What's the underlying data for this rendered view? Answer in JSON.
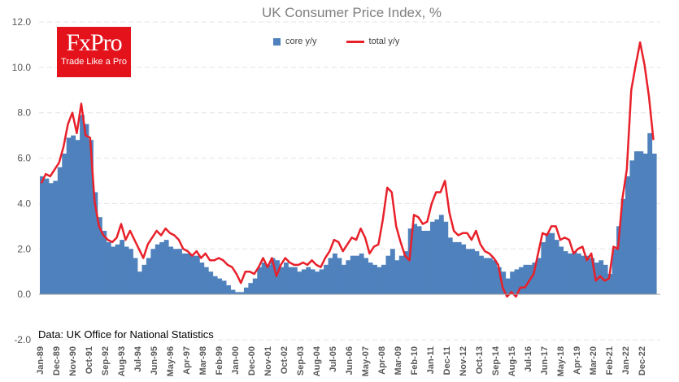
{
  "chart_data": {
    "type": "bar+line",
    "title": "UK Consumer Price Index, %",
    "source_note": "Data: UK Office for National Statistics",
    "ylim": [
      -2,
      12
    ],
    "yticks": [
      "12.0",
      "10.0",
      "8.0",
      "6.0",
      "4.0",
      "2.0",
      "0.0",
      "-2.0"
    ],
    "ytick_values": [
      12,
      10,
      8,
      6,
      4,
      2,
      0,
      -2
    ],
    "grid": "horizontal dashed",
    "legend_position": "top-center",
    "xticks": [
      "Jan-89",
      "Dec-89",
      "Nov-90",
      "Oct-91",
      "Sep-92",
      "Aug-93",
      "Jul-94",
      "Jun-95",
      "May-96",
      "Apr-97",
      "Mar-98",
      "Feb-99",
      "Jan-00",
      "Dec-00",
      "Nov-01",
      "Oct-02",
      "Sep-03",
      "Aug-04",
      "Jul-05",
      "Jun-06",
      "May-07",
      "Apr-08",
      "Mar-09",
      "Feb-10",
      "Jan-11",
      "Dec-11",
      "Nov-12",
      "Oct-13",
      "Sep-14",
      "Aug-15",
      "Jul-16",
      "Jun-17",
      "May-18",
      "Apr-19",
      "Mar-20",
      "Feb-21",
      "Jan-22",
      "Dec-22"
    ],
    "x_start": "1989-01",
    "x_step_months": 3,
    "series": [
      {
        "name": "core y/y",
        "type": "bar",
        "color": "#4f81bd",
        "values": [
          5.2,
          5.1,
          4.9,
          5.0,
          5.6,
          6.2,
          6.9,
          7.0,
          6.8,
          7.9,
          7.5,
          6.8,
          4.5,
          3.4,
          2.8,
          2.3,
          2.1,
          2.2,
          2.4,
          2.1,
          2.0,
          1.6,
          1.0,
          1.3,
          1.6,
          2.0,
          2.2,
          2.3,
          2.4,
          2.1,
          2.0,
          2.0,
          1.8,
          1.8,
          1.7,
          1.7,
          1.4,
          1.2,
          1.0,
          0.8,
          0.7,
          0.6,
          0.4,
          0.2,
          0.1,
          0.1,
          0.3,
          0.5,
          0.7,
          1.2,
          1.4,
          1.3,
          1.6,
          1.5,
          1.2,
          1.4,
          1.2,
          1.2,
          1.0,
          1.1,
          1.2,
          1.1,
          1.0,
          1.1,
          1.3,
          1.6,
          1.8,
          1.6,
          1.3,
          1.5,
          1.7,
          1.7,
          1.8,
          1.6,
          1.4,
          1.3,
          1.2,
          1.3,
          1.7,
          2.0,
          1.5,
          1.7,
          1.9,
          2.9,
          3.1,
          3.0,
          2.8,
          2.8,
          3.2,
          3.3,
          3.5,
          3.2,
          2.5,
          2.3,
          2.3,
          2.2,
          2.0,
          2.0,
          1.9,
          1.7,
          1.6,
          1.6,
          1.5,
          1.2,
          1.0,
          0.7,
          1.0,
          1.1,
          1.2,
          1.3,
          1.3,
          1.4,
          1.6,
          2.3,
          2.7,
          2.7,
          2.4,
          2.1,
          1.9,
          1.8,
          1.9,
          1.8,
          1.7,
          1.7,
          1.6,
          1.4,
          1.5,
          1.3,
          0.9,
          2.0,
          3.0,
          4.2,
          5.2,
          5.9,
          6.3,
          6.3,
          6.2,
          7.1,
          6.2
        ]
      },
      {
        "name": "total y/y",
        "type": "line",
        "color": "#e8202a",
        "values": [
          4.9,
          5.3,
          5.2,
          5.5,
          5.8,
          6.5,
          7.5,
          8.0,
          7.1,
          8.4,
          7.0,
          6.9,
          4.1,
          3.0,
          2.6,
          2.4,
          2.3,
          2.5,
          3.1,
          2.4,
          2.8,
          2.4,
          2.0,
          1.6,
          2.2,
          2.5,
          2.8,
          2.6,
          2.9,
          2.7,
          2.6,
          2.4,
          2.0,
          1.9,
          1.7,
          1.9,
          1.6,
          1.8,
          1.5,
          1.5,
          1.6,
          1.5,
          1.3,
          1.2,
          0.9,
          0.5,
          1.0,
          1.0,
          0.9,
          1.2,
          1.6,
          1.2,
          1.6,
          0.8,
          1.3,
          1.6,
          1.4,
          1.3,
          1.3,
          1.4,
          1.3,
          1.5,
          1.3,
          1.2,
          1.6,
          1.9,
          2.4,
          2.3,
          1.9,
          2.2,
          2.5,
          2.4,
          2.9,
          2.5,
          1.8,
          2.1,
          2.2,
          3.3,
          4.7,
          4.5,
          3.0,
          2.3,
          1.7,
          1.5,
          3.5,
          3.4,
          3.1,
          3.2,
          4.0,
          4.5,
          4.5,
          5.0,
          3.6,
          2.8,
          2.6,
          2.7,
          2.7,
          2.4,
          2.8,
          2.2,
          1.9,
          1.8,
          1.6,
          1.3,
          0.3,
          -0.1,
          0.1,
          -0.1,
          0.3,
          0.3,
          0.6,
          0.9,
          1.8,
          2.7,
          2.6,
          3.0,
          3.0,
          2.4,
          2.5,
          2.4,
          1.8,
          2.0,
          2.1,
          1.5,
          1.8,
          0.6,
          0.8,
          0.6,
          0.7,
          2.1,
          2.0,
          4.2,
          5.5,
          9.0,
          10.1,
          11.1,
          10.1,
          8.7,
          6.8
        ]
      }
    ]
  },
  "logo": {
    "brand": "FxPro",
    "tagline": "Trade Like a Pro",
    "color": "#e3121b"
  }
}
